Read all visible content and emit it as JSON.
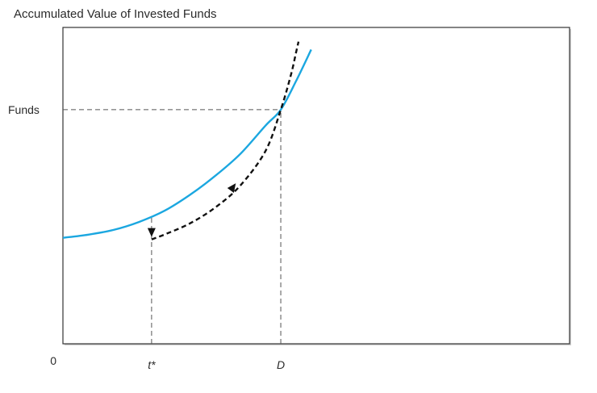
{
  "chart_data": {
    "type": "line",
    "title": "Accumulated Value of Invested Funds",
    "xlabel": "",
    "ylabel": "",
    "origin_label": "0",
    "x_tick_labels": [
      "t*",
      "D"
    ],
    "y_tick_labels": [
      "Funds"
    ],
    "xlim": [
      0,
      10
    ],
    "ylim": [
      0,
      10
    ],
    "reference_lines": {
      "horizontal_at_y": 7.4,
      "vertical_at_x": [
        1.75,
        4.3
      ]
    },
    "series": [
      {
        "color": "#1ba7e0",
        "style": "solid",
        "points": [
          [
            0.0,
            3.35
          ],
          [
            0.5,
            3.45
          ],
          [
            1.0,
            3.6
          ],
          [
            1.5,
            3.85
          ],
          [
            2.0,
            4.2
          ],
          [
            2.5,
            4.7
          ],
          [
            3.0,
            5.3
          ],
          [
            3.5,
            6.0
          ],
          [
            4.0,
            6.9
          ],
          [
            4.3,
            7.4
          ],
          [
            4.6,
            8.3
          ],
          [
            4.9,
            9.3
          ]
        ]
      },
      {
        "color": "#111111",
        "style": "dashed",
        "arrows": true,
        "points": [
          [
            1.75,
            3.3
          ],
          [
            2.0,
            3.45
          ],
          [
            2.5,
            3.8
          ],
          [
            3.0,
            4.3
          ],
          [
            3.5,
            5.0
          ],
          [
            4.0,
            6.1
          ],
          [
            4.3,
            7.4
          ],
          [
            4.5,
            8.5
          ],
          [
            4.6,
            9.2
          ],
          [
            4.65,
            9.55
          ]
        ]
      }
    ]
  }
}
